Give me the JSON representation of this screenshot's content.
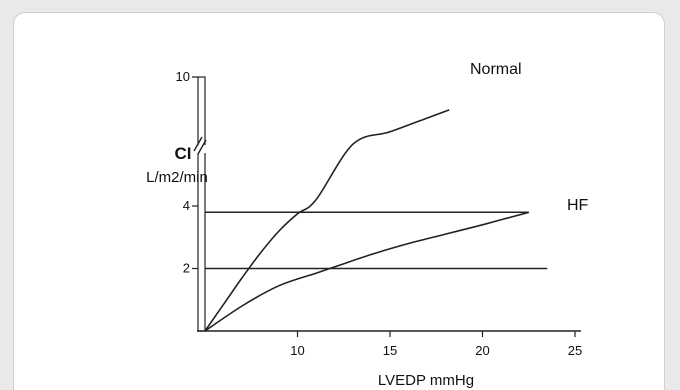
{
  "chart_data": {
    "type": "line",
    "title": "",
    "xlabel": "LVEDP mmHg",
    "ylabel": "CI",
    "ylabel_unit": "L/m2/min",
    "xlim": [
      5,
      25
    ],
    "ylim": [
      0,
      10
    ],
    "y_axis_break": true,
    "x_ticks": [
      10,
      15,
      20,
      25
    ],
    "y_ticks": [
      2,
      4,
      10
    ],
    "grid": false,
    "legend": "none",
    "series": [
      {
        "name": "Normal",
        "x": [
          5,
          6,
          7,
          8,
          9,
          10,
          11,
          13,
          15,
          17,
          18.2
        ],
        "y": [
          0,
          0.85,
          1.7,
          2.5,
          3.2,
          3.75,
          4.2,
          5.1,
          6.0,
          7.0,
          7.6
        ]
      },
      {
        "name": "HF",
        "x": [
          5,
          7,
          9,
          11,
          12,
          14,
          16,
          18,
          20,
          22.5
        ],
        "y": [
          0,
          0.8,
          1.45,
          1.85,
          2.05,
          2.45,
          2.8,
          3.1,
          3.4,
          3.8
        ]
      }
    ],
    "reference_lines": [
      {
        "orientation": "horizontal",
        "y": 3.8,
        "x_range": [
          5,
          22.5
        ]
      },
      {
        "orientation": "horizontal",
        "y": 2,
        "x_range": [
          5,
          23.5
        ]
      }
    ],
    "colors": {
      "line": "#222222",
      "text": "#111111",
      "frame_border": "#cfcfcf",
      "page_background": "#e9e9e9"
    }
  }
}
